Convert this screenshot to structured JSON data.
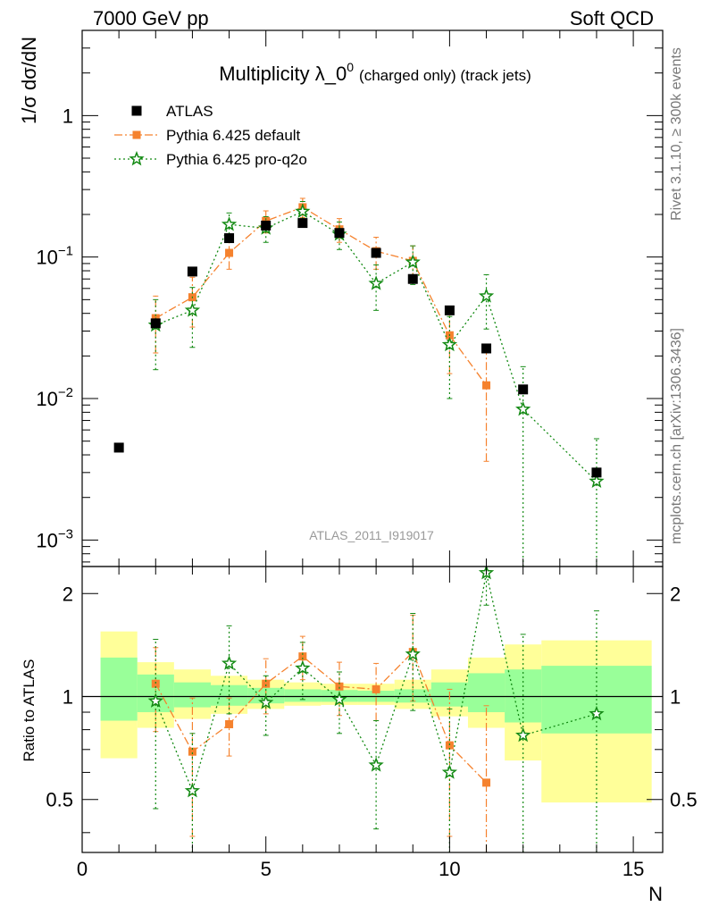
{
  "header": {
    "left": "7000 GeV pp",
    "right": "Soft QCD"
  },
  "side_labels": {
    "top": "Rivet 3.1.10, ≥ 300k events",
    "bottom": "mcplots.cern.ch [arXiv:1306.3436]"
  },
  "chart_data": {
    "type": "scatter",
    "title_main": "Multiplicity λ_0",
    "title_sup": "0",
    "title_small": "(charged only) (track jets)",
    "ylabel": "1/σ dσ/dN",
    "xlabel": "N",
    "ratio_ylabel": "Ratio to ATLAS",
    "reference": "ATLAS_2011_I919017",
    "y_scale": "log",
    "ylim": [
      0.00065,
      4.0
    ],
    "xlim": [
      0,
      15.8
    ],
    "ratio_ylim": [
      0.35,
      2.4
    ],
    "x_ticks": [
      0,
      5,
      10,
      15
    ],
    "x_tick_labels": [
      "0",
      "5",
      "10",
      "15"
    ],
    "y_tick_decades": [
      {
        "value": 0.001,
        "base": "10",
        "exp": "−3"
      },
      {
        "value": 0.01,
        "base": "10",
        "exp": "−2"
      },
      {
        "value": 0.1,
        "base": "10",
        "exp": "−1"
      },
      {
        "value": 1,
        "base": "1",
        "exp": ""
      }
    ],
    "ratio_ticks": [
      0.5,
      1,
      2
    ],
    "ratio_tick_labels": [
      "0.5",
      "1",
      "2"
    ],
    "legend_position": "top-left",
    "data": {
      "name": "ATLAS",
      "color": "#000000",
      "x": [
        1,
        2,
        3,
        4,
        5,
        6,
        7,
        8,
        9,
        10,
        11,
        12,
        14
      ],
      "y": [
        0.0045,
        0.034,
        0.079,
        0.136,
        0.167,
        0.174,
        0.148,
        0.107,
        0.07,
        0.042,
        0.0226,
        0.0116,
        0.003
      ]
    },
    "series": [
      {
        "name": "Pythia 6.425 default",
        "color": "#f5822e",
        "style": "dashdot",
        "marker": "square",
        "x": [
          2,
          3,
          4,
          5,
          6,
          7,
          8,
          9,
          10,
          11
        ],
        "y": [
          0.037,
          0.052,
          0.107,
          0.18,
          0.225,
          0.157,
          0.11,
          0.094,
          0.028,
          0.0124
        ],
        "y_err": [
          0.016,
          0.02,
          0.025,
          0.032,
          0.035,
          0.03,
          0.028,
          0.026,
          0.013,
          0.0088
        ],
        "ratio": [
          1.09,
          0.69,
          0.83,
          1.09,
          1.31,
          1.07,
          1.05,
          1.35,
          0.72,
          0.56
        ],
        "ratio_err": [
          0.3,
          0.3,
          0.16,
          0.2,
          0.19,
          0.19,
          0.2,
          0.38,
          0.33,
          0.38
        ]
      },
      {
        "name": "Pythia 6.425 pro-q2o",
        "color": "#138a13",
        "style": "dotted",
        "marker": "star",
        "x": [
          2,
          3,
          4,
          5,
          6,
          7,
          8,
          9,
          10,
          11,
          12,
          14
        ],
        "y": [
          0.033,
          0.042,
          0.17,
          0.16,
          0.21,
          0.145,
          0.065,
          0.092,
          0.024,
          0.053,
          0.0084,
          0.0026
        ],
        "y_err": [
          0.017,
          0.019,
          0.035,
          0.033,
          0.037,
          0.032,
          0.023,
          0.028,
          0.014,
          0.022,
          0.0084,
          0.0026
        ],
        "ratio": [
          0.97,
          0.53,
          1.25,
          0.96,
          1.21,
          0.98,
          0.63,
          1.33,
          0.6,
          2.3,
          0.77,
          0.89
        ],
        "ratio_err": [
          0.5,
          0.25,
          0.36,
          0.19,
          0.23,
          0.2,
          0.22,
          0.42,
          0.32,
          0.45,
          0.75,
          0.89
        ]
      }
    ],
    "bands": {
      "green_color": "#99ff99",
      "yellow_color": "#ffff99",
      "edges": [
        0.5,
        1.5,
        2.5,
        3.5,
        4.5,
        5.5,
        6.5,
        7.5,
        8.5,
        9.5,
        10.5,
        11.5,
        12.5,
        15.5
      ],
      "green_lo": [
        0.85,
        0.9,
        0.93,
        0.94,
        0.955,
        0.965,
        0.965,
        0.965,
        0.96,
        0.935,
        0.9,
        0.84,
        0.78
      ],
      "green_hi": [
        1.3,
        1.16,
        1.1,
        1.08,
        1.06,
        1.05,
        1.045,
        1.04,
        1.05,
        1.1,
        1.17,
        1.2,
        1.23
      ],
      "yellow_lo": [
        0.66,
        0.81,
        0.86,
        0.89,
        0.92,
        0.94,
        0.945,
        0.945,
        0.92,
        0.875,
        0.81,
        0.65,
        0.49
      ],
      "yellow_hi": [
        1.55,
        1.26,
        1.2,
        1.15,
        1.12,
        1.1,
        1.09,
        1.09,
        1.12,
        1.2,
        1.3,
        1.42,
        1.46
      ]
    }
  }
}
